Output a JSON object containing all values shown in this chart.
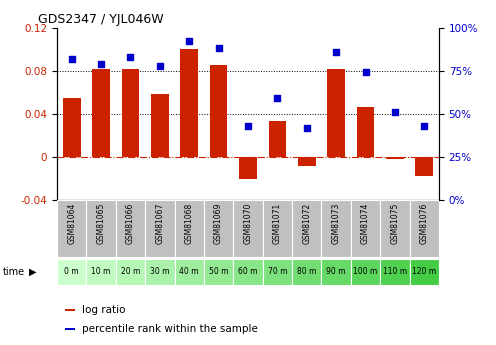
{
  "title": "GDS2347 / YJL046W",
  "samples": [
    "GSM81064",
    "GSM81065",
    "GSM81066",
    "GSM81067",
    "GSM81068",
    "GSM81069",
    "GSM81070",
    "GSM81071",
    "GSM81072",
    "GSM81073",
    "GSM81074",
    "GSM81075",
    "GSM81076"
  ],
  "time_labels": [
    "0 m",
    "10 m",
    "20 m",
    "30 m",
    "40 m",
    "50 m",
    "60 m",
    "70 m",
    "80 m",
    "90 m",
    "100 m",
    "110 m",
    "120 m"
  ],
  "log_ratio": [
    0.055,
    0.082,
    0.082,
    0.058,
    0.1,
    0.085,
    -0.02,
    0.033,
    -0.008,
    0.082,
    0.046,
    -0.002,
    -0.018
  ],
  "percentile_rank": [
    82,
    79,
    83,
    78,
    92,
    88,
    43,
    59,
    42,
    86,
    74,
    51,
    43
  ],
  "bar_color": "#cc2200",
  "scatter_color": "#0000cc",
  "ylim_left": [
    -0.04,
    0.12
  ],
  "ylim_right": [
    0,
    100
  ],
  "yticks_left": [
    -0.04,
    0,
    0.04,
    0.08,
    0.12
  ],
  "yticks_right": [
    0,
    25,
    50,
    75,
    100
  ],
  "hlines": [
    0.04,
    0.08
  ],
  "bg_color_gray": "#c0c0c0",
  "bg_color_green_light": "#ccffcc",
  "bg_color_green_dark": "#66dd66",
  "legend_log_ratio": "log ratio",
  "legend_percentile": "percentile rank within the sample"
}
